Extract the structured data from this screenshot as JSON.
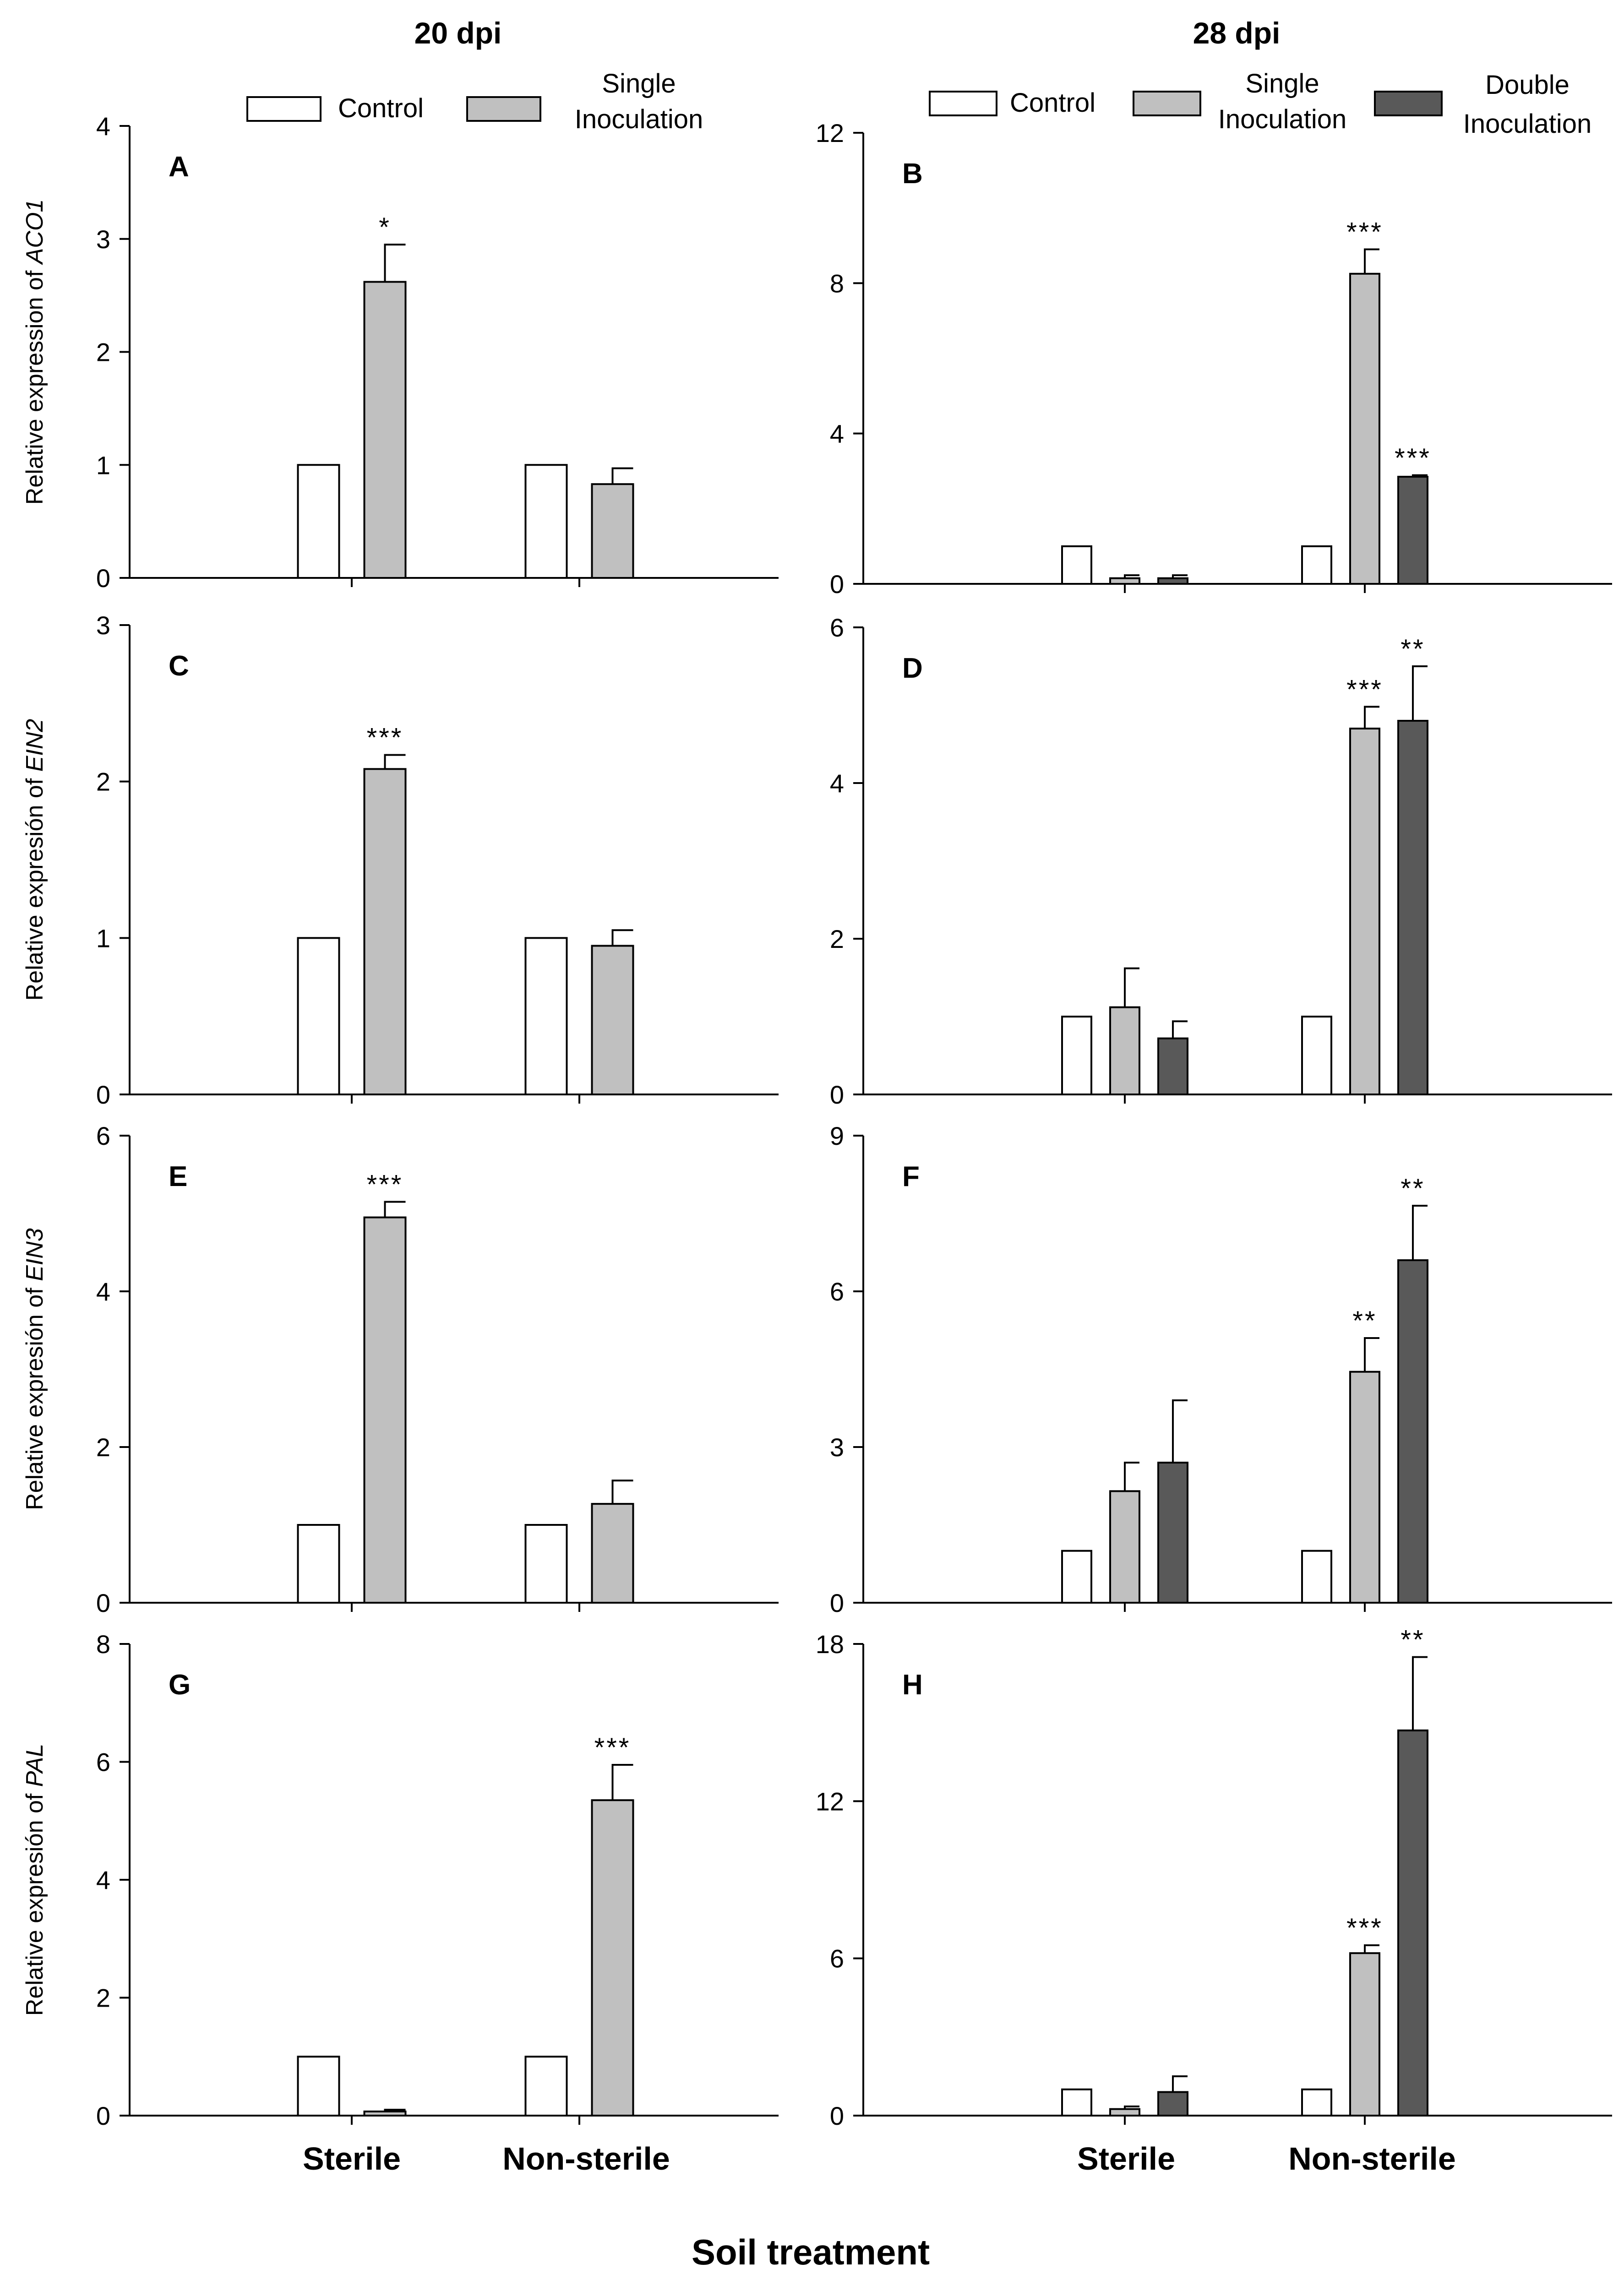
{
  "figure": {
    "column_titles": [
      "20 dpi",
      "28 dpi"
    ],
    "xlabel": "Soil treatment",
    "categories": [
      "Sterile",
      "Non-sterile"
    ]
  },
  "legends": [
    {
      "entries": [
        {
          "lines": [
            "Control"
          ],
          "color": "#ffffff"
        },
        {
          "lines": [
            "Single",
            "Inoculation"
          ],
          "color": "#c0c0c0"
        }
      ]
    },
    {
      "entries": [
        {
          "lines": [
            "Control"
          ],
          "color": "#ffffff"
        },
        {
          "lines": [
            "Single",
            "Inoculation"
          ],
          "color": "#c0c0c0"
        },
        {
          "lines": [
            "Double",
            "Inoculation"
          ],
          "color": "#595959"
        }
      ]
    }
  ],
  "chart_data": [
    {
      "id": "A",
      "type": "bar",
      "panel_label": "A",
      "ylabel": "Relative expression of",
      "ylabel_gene": "ACO1",
      "ylim": [
        0,
        4
      ],
      "yticks": [
        "0",
        "1",
        "2",
        "3",
        "4"
      ],
      "categories": [
        "Sterile",
        "Non-sterile"
      ],
      "series": [
        {
          "name": "Control",
          "color": "#ffffff",
          "values": [
            1,
            1
          ],
          "errors": [
            null,
            null
          ],
          "sig": [
            "",
            ""
          ]
        },
        {
          "name": "Single Inoculation",
          "color": "#c0c0c0",
          "values": [
            2.62,
            0.83
          ],
          "errors": [
            0.33,
            0.14
          ],
          "sig": [
            "*",
            ""
          ]
        }
      ]
    },
    {
      "id": "B",
      "type": "bar",
      "panel_label": "B",
      "ylabel": "",
      "ylabel_gene": "",
      "ylim": [
        0,
        12
      ],
      "yticks": [
        "0",
        "4",
        "8",
        "12"
      ],
      "categories": [
        "Sterile",
        "Non-sterile"
      ],
      "series": [
        {
          "name": "Control",
          "color": "#ffffff",
          "values": [
            1,
            1
          ],
          "errors": [
            null,
            null
          ],
          "sig": [
            "",
            ""
          ]
        },
        {
          "name": "Single Inoculation",
          "color": "#c0c0c0",
          "values": [
            0.15,
            8.25
          ],
          "errors": [
            0.08,
            0.65
          ],
          "sig": [
            "",
            "***"
          ]
        },
        {
          "name": "Double Inoculation",
          "color": "#595959",
          "values": [
            0.15,
            2.85
          ],
          "errors": [
            0.08,
            0.04
          ],
          "sig": [
            "",
            "***"
          ]
        }
      ]
    },
    {
      "id": "C",
      "type": "bar",
      "panel_label": "C",
      "ylabel": "Relative expresión of",
      "ylabel_gene": "EIN2",
      "ylim": [
        0,
        3
      ],
      "yticks": [
        "0",
        "1",
        "2",
        "3"
      ],
      "categories": [
        "Sterile",
        "Non-sterile"
      ],
      "series": [
        {
          "name": "Control",
          "color": "#ffffff",
          "values": [
            1,
            1
          ],
          "errors": [
            null,
            null
          ],
          "sig": [
            "",
            ""
          ]
        },
        {
          "name": "Single Inoculation",
          "color": "#c0c0c0",
          "values": [
            2.08,
            0.95
          ],
          "errors": [
            0.09,
            0.1
          ],
          "sig": [
            "***",
            ""
          ]
        }
      ]
    },
    {
      "id": "D",
      "type": "bar",
      "panel_label": "D",
      "ylabel": "",
      "ylabel_gene": "",
      "ylim": [
        0,
        6
      ],
      "yticks": [
        "0",
        "2",
        "4",
        "6"
      ],
      "categories": [
        "Sterile",
        "Non-sterile"
      ],
      "series": [
        {
          "name": "Control",
          "color": "#ffffff",
          "values": [
            1,
            1
          ],
          "errors": [
            null,
            null
          ],
          "sig": [
            "",
            ""
          ]
        },
        {
          "name": "Single Inoculation",
          "color": "#c0c0c0",
          "values": [
            1.12,
            4.7
          ],
          "errors": [
            0.5,
            0.28
          ],
          "sig": [
            "",
            "***"
          ]
        },
        {
          "name": "Double Inoculation",
          "color": "#595959",
          "values": [
            0.72,
            4.8
          ],
          "errors": [
            0.22,
            0.7
          ],
          "sig": [
            "",
            "**"
          ]
        }
      ]
    },
    {
      "id": "E",
      "type": "bar",
      "panel_label": "E",
      "ylabel": "Relative expresión of",
      "ylabel_gene": "EIN3",
      "ylim": [
        0,
        6
      ],
      "yticks": [
        "0",
        "2",
        "4",
        "6"
      ],
      "categories": [
        "Sterile",
        "Non-sterile"
      ],
      "series": [
        {
          "name": "Control",
          "color": "#ffffff",
          "values": [
            1,
            1
          ],
          "errors": [
            null,
            null
          ],
          "sig": [
            "",
            ""
          ]
        },
        {
          "name": "Single Inoculation",
          "color": "#c0c0c0",
          "values": [
            4.95,
            1.27
          ],
          "errors": [
            0.2,
            0.3
          ],
          "sig": [
            "***",
            ""
          ]
        }
      ]
    },
    {
      "id": "F",
      "type": "bar",
      "panel_label": "F",
      "ylabel": "",
      "ylabel_gene": "",
      "ylim": [
        0,
        9
      ],
      "yticks": [
        "0",
        "3",
        "6",
        "9"
      ],
      "categories": [
        "Sterile",
        "Non-sterile"
      ],
      "series": [
        {
          "name": "Control",
          "color": "#ffffff",
          "values": [
            1,
            1
          ],
          "errors": [
            null,
            null
          ],
          "sig": [
            "",
            ""
          ]
        },
        {
          "name": "Single Inoculation",
          "color": "#c0c0c0",
          "values": [
            2.15,
            4.45
          ],
          "errors": [
            0.55,
            0.65
          ],
          "sig": [
            "",
            "**"
          ]
        },
        {
          "name": "Double Inoculation",
          "color": "#595959",
          "values": [
            2.7,
            6.6
          ],
          "errors": [
            1.2,
            1.05
          ],
          "sig": [
            "",
            "**"
          ]
        }
      ]
    },
    {
      "id": "G",
      "type": "bar",
      "panel_label": "G",
      "ylabel": "Relative expresión of",
      "ylabel_gene": "PAL",
      "ylim": [
        0,
        8
      ],
      "yticks": [
        "0",
        "2",
        "4",
        "6",
        "8"
      ],
      "categories": [
        "Sterile",
        "Non-sterile"
      ],
      "series": [
        {
          "name": "Control",
          "color": "#ffffff",
          "values": [
            1,
            1
          ],
          "errors": [
            null,
            null
          ],
          "sig": [
            "",
            ""
          ]
        },
        {
          "name": "Single Inoculation",
          "color": "#c0c0c0",
          "values": [
            0.07,
            5.35
          ],
          "errors": [
            0.03,
            0.6
          ],
          "sig": [
            "",
            "***"
          ]
        }
      ]
    },
    {
      "id": "H",
      "type": "bar",
      "panel_label": "H",
      "ylabel": "",
      "ylabel_gene": "",
      "ylim": [
        0,
        18
      ],
      "yticks": [
        "0",
        "6",
        "12",
        "18"
      ],
      "categories": [
        "Sterile",
        "Non-sterile"
      ],
      "series": [
        {
          "name": "Control",
          "color": "#ffffff",
          "values": [
            1,
            1
          ],
          "errors": [
            null,
            null
          ],
          "sig": [
            "",
            ""
          ]
        },
        {
          "name": "Single Inoculation",
          "color": "#c0c0c0",
          "values": [
            0.25,
            6.2
          ],
          "errors": [
            0.1,
            0.3
          ],
          "sig": [
            "",
            "***"
          ]
        },
        {
          "name": "Double Inoculation",
          "color": "#595959",
          "values": [
            0.9,
            14.7
          ],
          "errors": [
            0.6,
            2.8
          ],
          "sig": [
            "",
            "**"
          ]
        }
      ]
    }
  ]
}
